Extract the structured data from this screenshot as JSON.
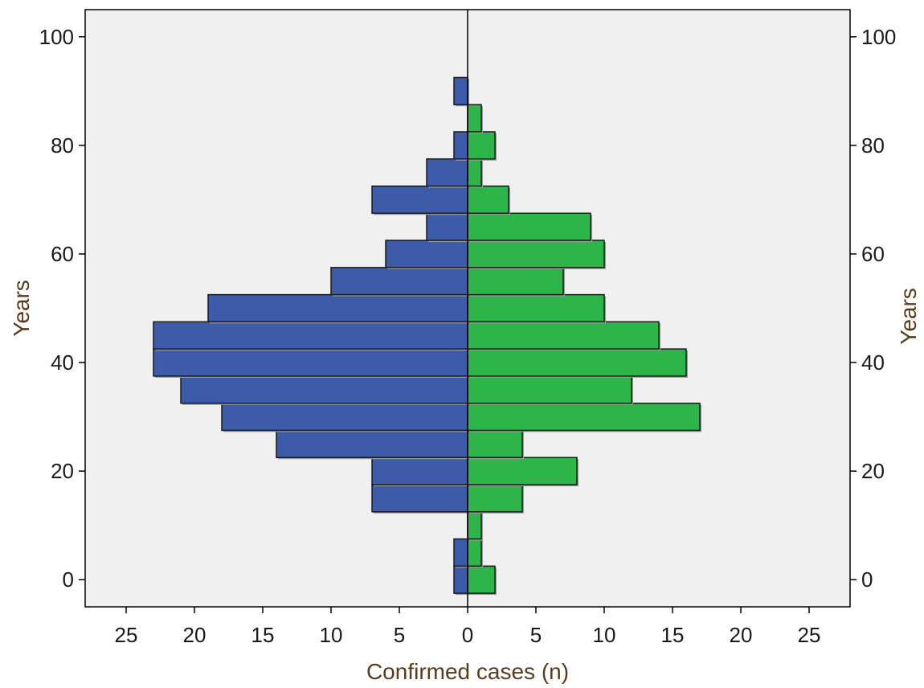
{
  "chart_data": {
    "type": "bar",
    "orientation": "horizontal",
    "layout": "back-to-back (population pyramid)",
    "xlabel": "Confirmed cases (n)",
    "ylabel_left": "Years",
    "ylabel_right": "Years",
    "x_ticks": [
      "25",
      "20",
      "15",
      "10",
      "5",
      "0",
      "5",
      "10",
      "15",
      "20",
      "25"
    ],
    "y_ticks": [
      "0",
      "20",
      "40",
      "60",
      "80",
      "100"
    ],
    "xlim": [
      -28,
      28
    ],
    "ylim": [
      -5,
      105
    ],
    "bin_width": 5,
    "legend": "none",
    "grid": false,
    "series": [
      {
        "side": "left",
        "color": "#3d5ba9",
        "bins": [
          {
            "age_center": 0,
            "value": 1
          },
          {
            "age_center": 5,
            "value": 1
          },
          {
            "age_center": 15,
            "value": 7
          },
          {
            "age_center": 20,
            "value": 7
          },
          {
            "age_center": 25,
            "value": 14
          },
          {
            "age_center": 30,
            "value": 18
          },
          {
            "age_center": 35,
            "value": 21
          },
          {
            "age_center": 40,
            "value": 23
          },
          {
            "age_center": 45,
            "value": 23
          },
          {
            "age_center": 50,
            "value": 19
          },
          {
            "age_center": 55,
            "value": 10
          },
          {
            "age_center": 60,
            "value": 6
          },
          {
            "age_center": 65,
            "value": 3
          },
          {
            "age_center": 70,
            "value": 7
          },
          {
            "age_center": 75,
            "value": 3
          },
          {
            "age_center": 80,
            "value": 1
          },
          {
            "age_center": 90,
            "value": 1
          }
        ]
      },
      {
        "side": "right",
        "color": "#2db54a",
        "bins": [
          {
            "age_center": 0,
            "value": 2
          },
          {
            "age_center": 5,
            "value": 1
          },
          {
            "age_center": 10,
            "value": 1
          },
          {
            "age_center": 15,
            "value": 4
          },
          {
            "age_center": 20,
            "value": 8
          },
          {
            "age_center": 25,
            "value": 4
          },
          {
            "age_center": 30,
            "value": 17
          },
          {
            "age_center": 35,
            "value": 12
          },
          {
            "age_center": 40,
            "value": 16
          },
          {
            "age_center": 45,
            "value": 14
          },
          {
            "age_center": 50,
            "value": 10
          },
          {
            "age_center": 55,
            "value": 7
          },
          {
            "age_center": 60,
            "value": 10
          },
          {
            "age_center": 65,
            "value": 9
          },
          {
            "age_center": 70,
            "value": 3
          },
          {
            "age_center": 75,
            "value": 1
          },
          {
            "age_center": 80,
            "value": 2
          },
          {
            "age_center": 85,
            "value": 1
          }
        ]
      }
    ],
    "colors": {
      "plot_background": "#f0f0f0",
      "bar_outline": "#1a1a1a",
      "axis_line": "#000000"
    }
  }
}
